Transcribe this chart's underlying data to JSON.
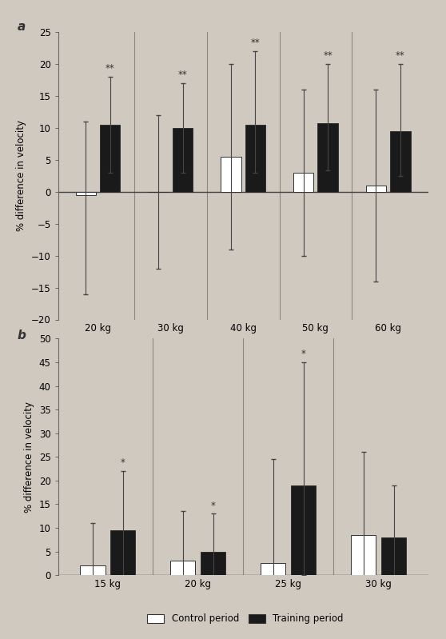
{
  "panel_a": {
    "categories": [
      "20 kg",
      "30 kg",
      "40 kg",
      "50 kg",
      "60 kg"
    ],
    "control_vals": [
      -0.5,
      0.0,
      5.5,
      3.0,
      1.0
    ],
    "training_vals": [
      10.5,
      10.0,
      10.5,
      10.7,
      9.5
    ],
    "control_err_plus": [
      11.5,
      12.0,
      14.5,
      13.0,
      15.0
    ],
    "control_err_minus": [
      15.5,
      12.0,
      14.5,
      13.0,
      15.0
    ],
    "training_err_plus": [
      7.5,
      7.0,
      11.5,
      9.3,
      10.5
    ],
    "training_err_minus": [
      7.5,
      7.0,
      7.5,
      7.3,
      7.0
    ],
    "ylim": [
      -20,
      25
    ],
    "yticks": [
      -20,
      -15,
      -10,
      -5,
      0,
      5,
      10,
      15,
      20,
      25
    ],
    "ylabel": "% difference in velocity",
    "sig_training": [
      "**",
      "**",
      "**",
      "**",
      "**"
    ],
    "panel_label": "a",
    "dividers": [
      1,
      2,
      3,
      4
    ]
  },
  "panel_b": {
    "categories": [
      "15 kg",
      "20 kg",
      "25 kg",
      "30 kg"
    ],
    "control_vals": [
      2.0,
      3.0,
      2.5,
      8.5
    ],
    "training_vals": [
      9.5,
      5.0,
      19.0,
      8.0
    ],
    "control_err_plus": [
      9.0,
      10.5,
      22.0,
      17.5
    ],
    "control_err_minus": [
      9.0,
      10.5,
      22.0,
      17.5
    ],
    "training_err_plus": [
      12.5,
      8.0,
      26.0,
      11.0
    ],
    "training_err_minus": [
      12.5,
      8.0,
      19.0,
      11.0
    ],
    "ylim": [
      0,
      50
    ],
    "yticks": [
      0,
      5,
      10,
      15,
      20,
      25,
      30,
      35,
      40,
      45,
      50
    ],
    "ylabel": "% difference in velocity",
    "sig_training": [
      "*",
      "*",
      "*",
      ""
    ],
    "panel_label": "b",
    "dividers": [
      1,
      2,
      3
    ]
  },
  "bar_width": 0.28,
  "control_color": "#ffffff",
  "training_color": "#1a1a1a",
  "edge_color": "#333333",
  "bg_color": "#cfc9c0",
  "divider_color": "#888880",
  "legend_labels": [
    "Control period",
    "Training period"
  ],
  "font_size": 8.5,
  "label_font_size": 8.5,
  "panel_label_size": 11
}
